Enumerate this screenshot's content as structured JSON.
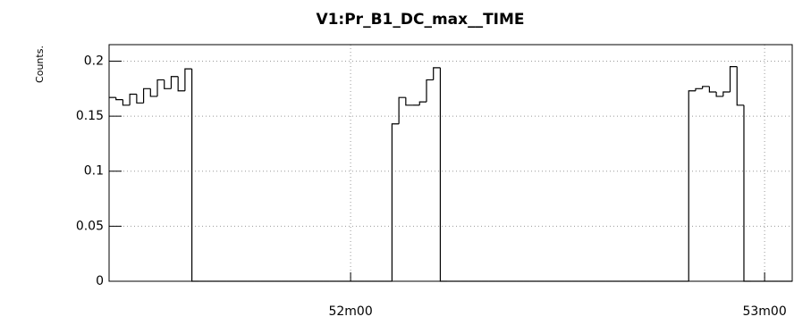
{
  "chart_data": {
    "type": "histogram",
    "title": "V1:Pr_B1_DC_max__TIME",
    "y_label": "Counts.",
    "bins": [
      3085,
      3086,
      3087,
      3088,
      3089,
      3090,
      3091,
      3092,
      3093,
      3094,
      3095,
      3096,
      3097,
      3098,
      3099,
      3100,
      3101,
      3102,
      3103,
      3104,
      3105,
      3106,
      3107,
      3108,
      3109,
      3110,
      3111,
      3112,
      3113,
      3114,
      3115,
      3116,
      3117,
      3118,
      3119,
      3120,
      3121,
      3122,
      3123,
      3124,
      3125,
      3126,
      3127,
      3128,
      3129,
      3130,
      3131,
      3132,
      3133,
      3134,
      3135,
      3136,
      3137,
      3138,
      3139,
      3140,
      3141,
      3142,
      3143,
      3144,
      3145,
      3146,
      3147,
      3148,
      3149,
      3150,
      3151,
      3152,
      3153,
      3154,
      3155,
      3156,
      3157,
      3158,
      3159,
      3160,
      3161,
      3162,
      3163,
      3164,
      3165,
      3166,
      3167,
      3168,
      3169,
      3170,
      3171,
      3172,
      3173,
      3174,
      3175,
      3176,
      3177,
      3178,
      3179,
      3180,
      3181,
      3182,
      3183,
      3184
    ],
    "counts": [
      0.167,
      0.165,
      0.16,
      0.17,
      0.162,
      0.175,
      0.168,
      0.183,
      0.175,
      0.186,
      0.173,
      0.193,
      0,
      0,
      0,
      0,
      0,
      0,
      0,
      0,
      0,
      0,
      0,
      0,
      0,
      0,
      0,
      0,
      0,
      0,
      0,
      0,
      0,
      0,
      0,
      0,
      0,
      0,
      0,
      0,
      0,
      0.143,
      0.167,
      0.16,
      0.16,
      0.163,
      0.183,
      0.194,
      0,
      0,
      0,
      0,
      0,
      0,
      0,
      0,
      0,
      0,
      0,
      0,
      0,
      0,
      0,
      0,
      0,
      0,
      0,
      0,
      0,
      0,
      0,
      0,
      0,
      0,
      0,
      0,
      0,
      0,
      0,
      0,
      0,
      0,
      0,
      0,
      0.173,
      0.175,
      0.177,
      0.172,
      0.168,
      0.172,
      0.195,
      0.16,
      0,
      0,
      0,
      0,
      0,
      0,
      0
    ],
    "color": "#000000",
    "xlim": [
      3085,
      3184
    ],
    "xticks": [
      {
        "value": 3120,
        "label": "52m00"
      },
      {
        "value": 3180,
        "label": "53m00"
      }
    ],
    "ylim": [
      0,
      0.215
    ],
    "yticks": [
      0,
      0.05,
      0.1,
      0.15,
      0.2
    ],
    "grid": true
  }
}
